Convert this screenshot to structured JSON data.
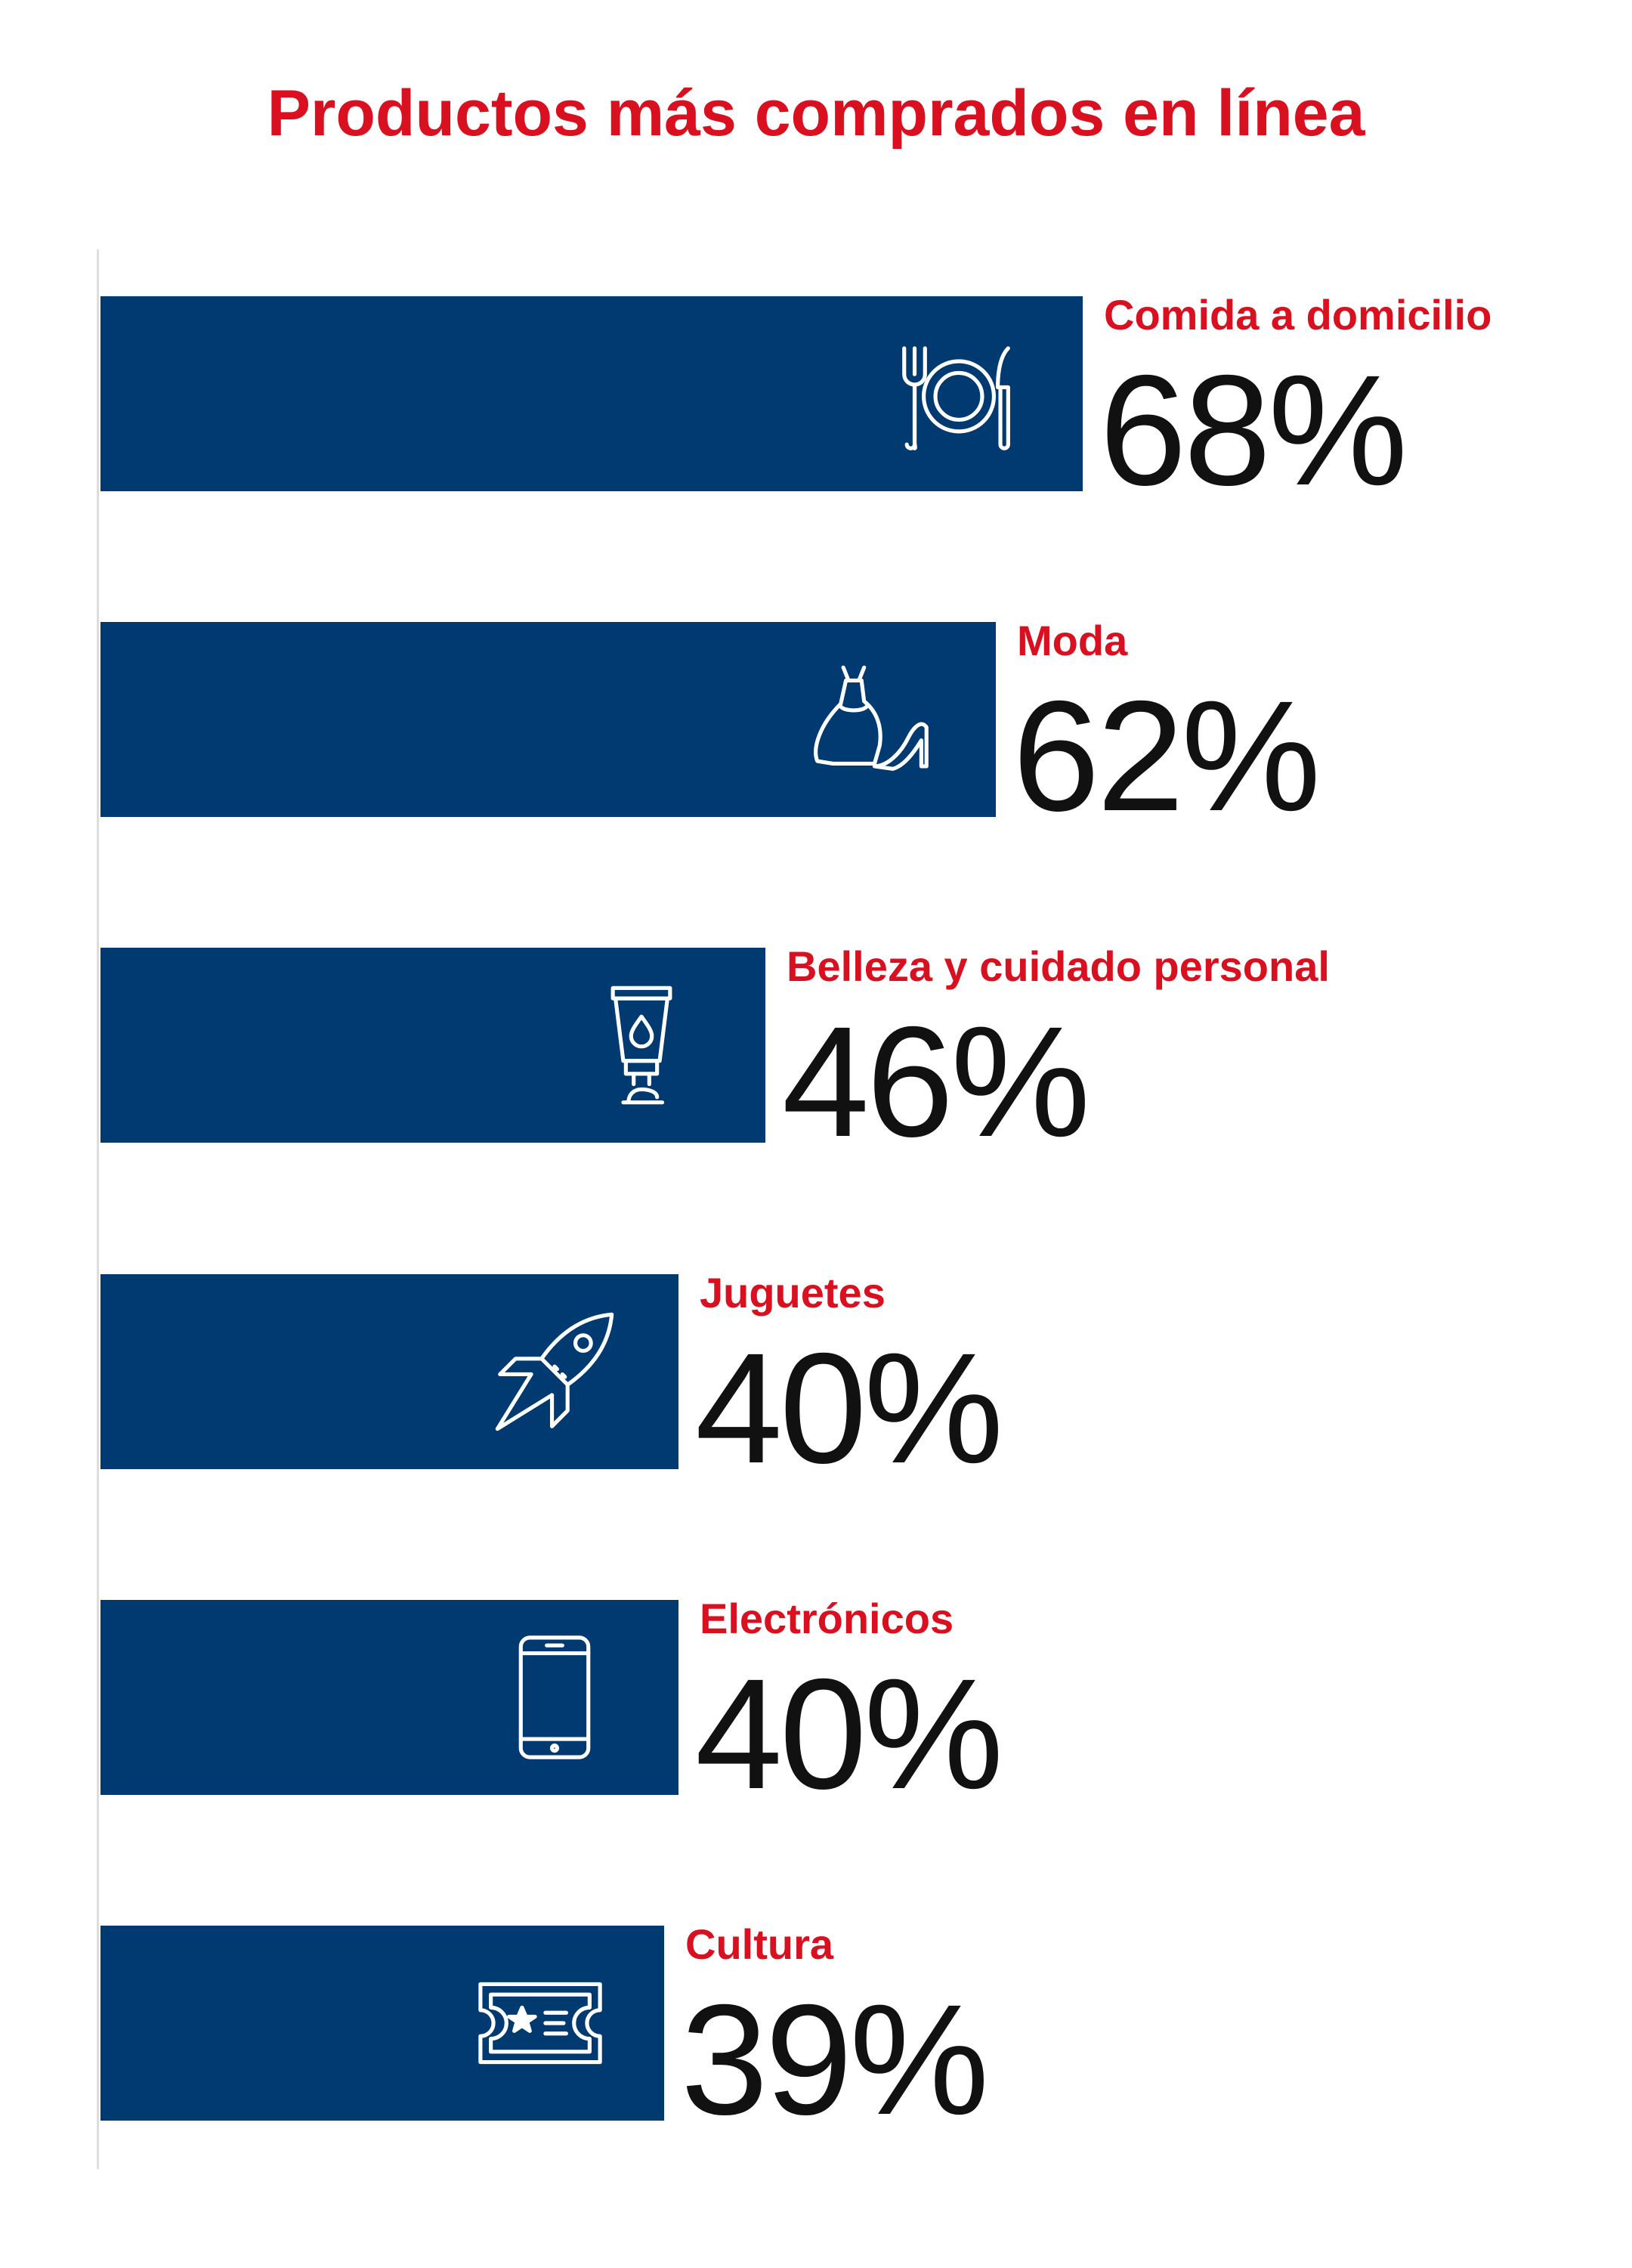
{
  "colors": {
    "bar": "#003a70",
    "title": "#d9101f",
    "category_label": "#d9101f",
    "value": "#111111",
    "icon_stroke": "#ffffff"
  },
  "chart_data": {
    "type": "bar",
    "orientation": "horizontal",
    "title": "Productos más comprados en línea",
    "xlabel": "",
    "ylabel": "",
    "xlim": [
      0,
      100
    ],
    "grid": false,
    "legend": "none",
    "categories": [
      "Comida a domicilio",
      "Moda",
      "Belleza y cuidado personal",
      "Juguetes",
      "Electrónicos",
      "Cultura"
    ],
    "values": [
      68,
      62,
      46,
      40,
      40,
      39
    ],
    "value_labels": [
      "68%",
      "62%",
      "46%",
      "40%",
      "40%",
      "39%"
    ],
    "icons": [
      "plate-cutlery-icon",
      "dress-shoe-icon",
      "cream-tube-icon",
      "rocket-icon",
      "smartphone-icon",
      "ticket-icon"
    ]
  }
}
